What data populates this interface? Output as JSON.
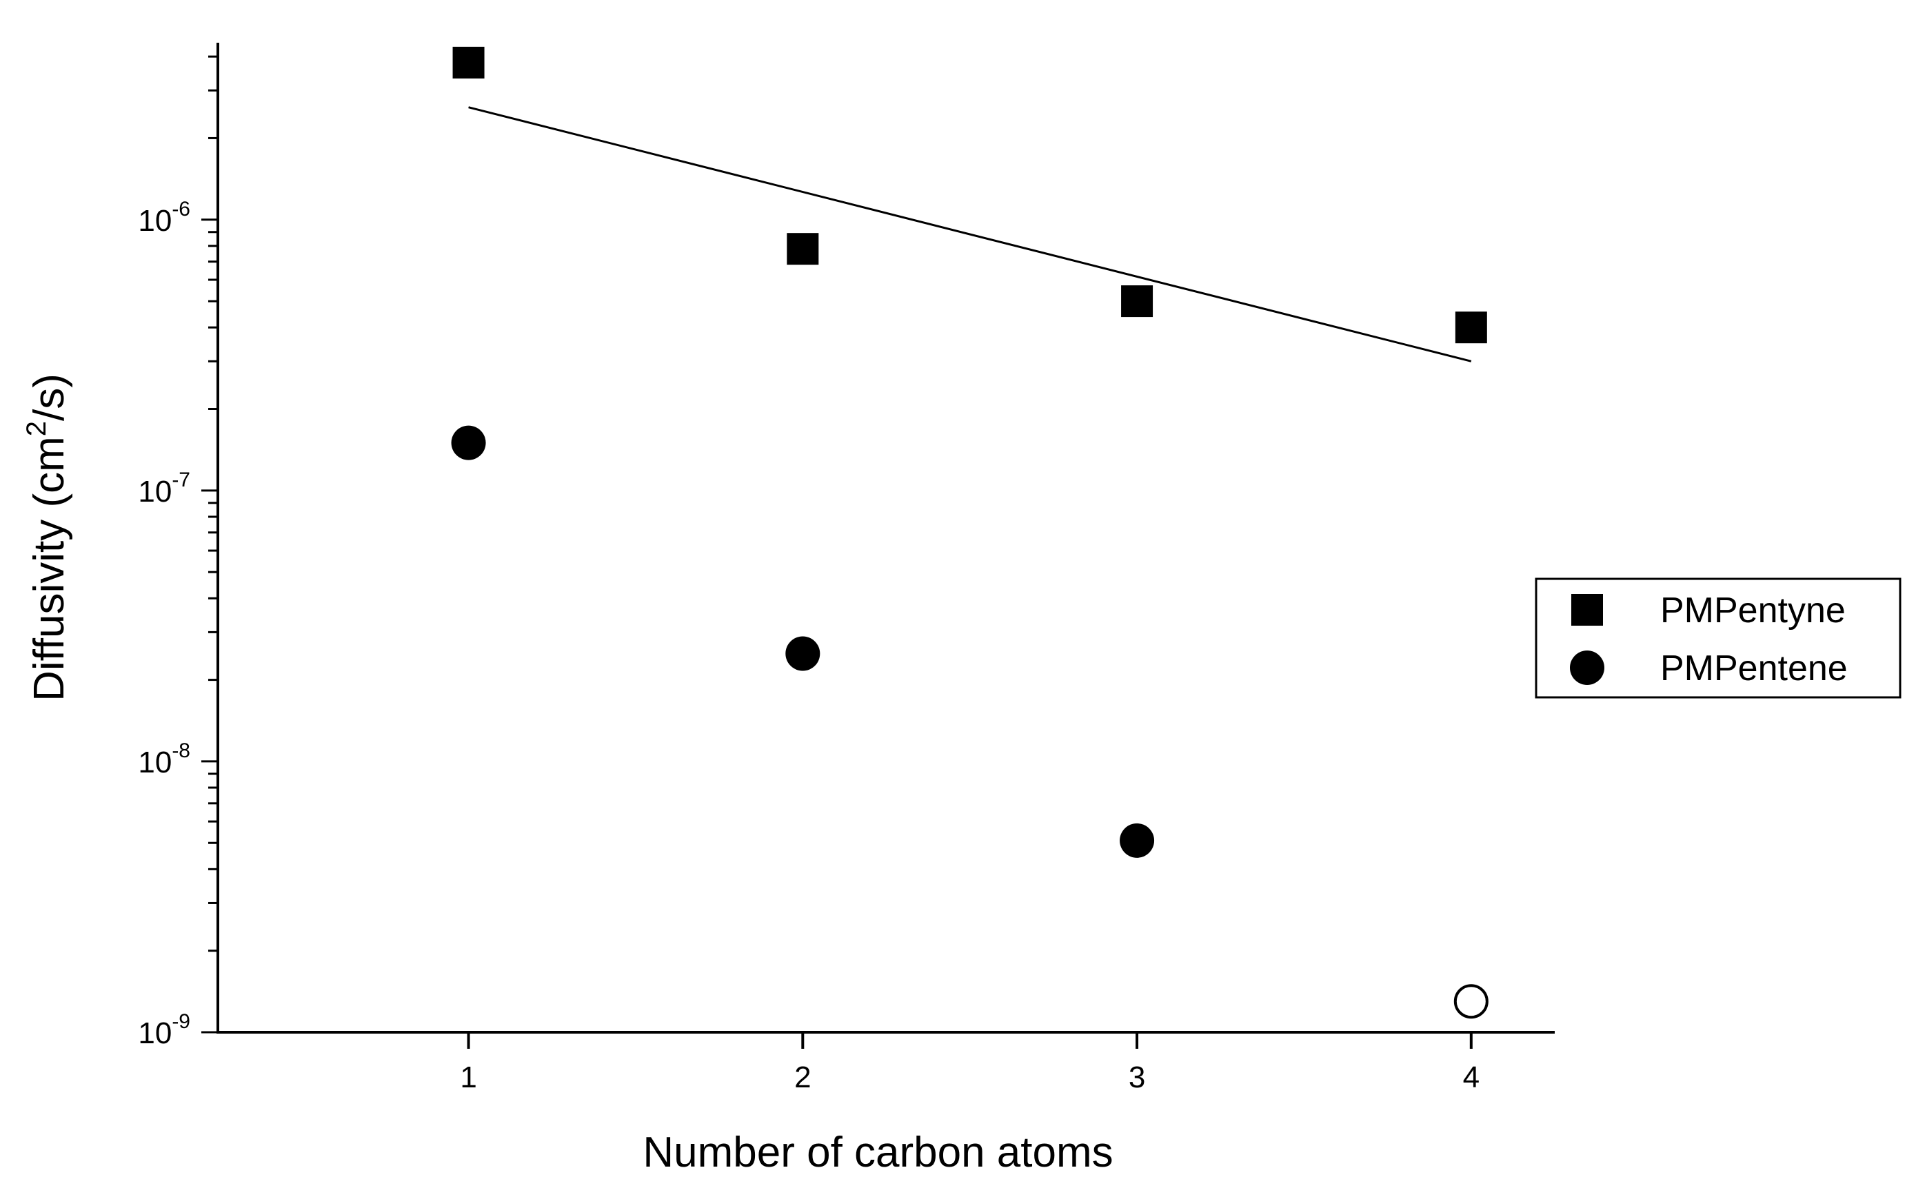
{
  "chart_data": {
    "type": "scatter",
    "xlabel": "Number of carbon atoms",
    "ylabel": {
      "prefix": "Diffusivity (cm",
      "superscript": "2",
      "suffix": "/s)"
    },
    "y_scale": "log",
    "xlim": [
      0.25,
      4.25
    ],
    "ylim": [
      1e-09,
      4.5e-06
    ],
    "x_ticks": [
      {
        "value": 1,
        "label": "1"
      },
      {
        "value": 2,
        "label": "2"
      },
      {
        "value": 3,
        "label": "3"
      },
      {
        "value": 4,
        "label": "4"
      }
    ],
    "y_ticks": [
      {
        "value": 1e-09,
        "base": "10",
        "exponent": "-9"
      },
      {
        "value": 1e-08,
        "base": "10",
        "exponent": "-8"
      },
      {
        "value": 1e-07,
        "base": "10",
        "exponent": "-7"
      },
      {
        "value": 1e-06,
        "base": "10",
        "exponent": "-6"
      }
    ],
    "grid": false,
    "legend_position": "right",
    "series": [
      {
        "name": "PMPentyne",
        "marker": "filled-square",
        "color": "#000000",
        "points": [
          {
            "x": 1,
            "y": 3.8e-06
          },
          {
            "x": 2,
            "y": 7.8e-07
          },
          {
            "x": 3,
            "y": 5e-07
          },
          {
            "x": 4,
            "y": 4e-07
          }
        ]
      },
      {
        "name": "PMPentene",
        "marker": "filled-circle",
        "color": "#000000",
        "points": [
          {
            "x": 1,
            "y": 1.5e-07
          },
          {
            "x": 2,
            "y": 2.5e-08
          },
          {
            "x": 3,
            "y": 5.1e-09
          },
          {
            "x": 4,
            "y": 1.3e-09,
            "hollow": true
          }
        ]
      }
    ],
    "fit_line": {
      "series": "PMPentyne",
      "points": [
        {
          "x": 1,
          "y": 2.6e-06
        },
        {
          "x": 4,
          "y": 3e-07
        }
      ]
    }
  }
}
